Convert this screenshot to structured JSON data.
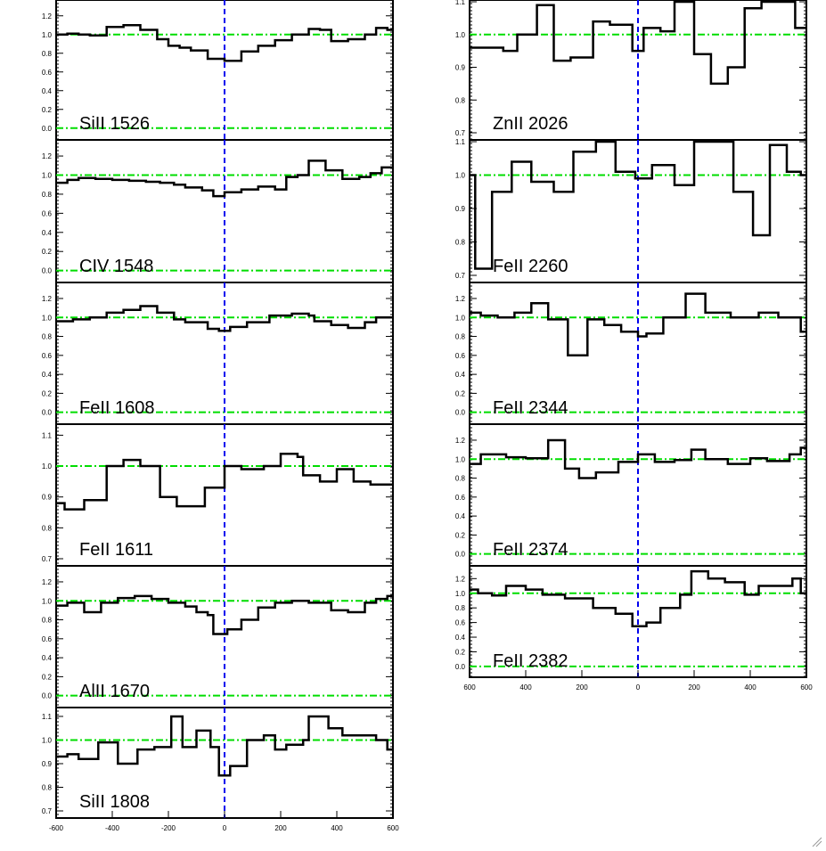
{
  "chart_data": [
    {
      "type": "line",
      "panel_label": "SiII 1526",
      "yticks": [
        "1.2",
        "1.0",
        "0.8",
        "0.6",
        "0.4",
        "0.2",
        "0.0"
      ],
      "ylim": [
        -0.05,
        1.35
      ],
      "xlim": [
        -600,
        600
      ],
      "steps": [
        [
          -600,
          1.0
        ],
        [
          -560,
          1.01
        ],
        [
          -520,
          1.0
        ],
        [
          -480,
          0.99
        ],
        [
          -420,
          1.08
        ],
        [
          -360,
          1.1
        ],
        [
          -300,
          1.05
        ],
        [
          -240,
          0.95
        ],
        [
          -200,
          0.88
        ],
        [
          -160,
          0.86
        ],
        [
          -120,
          0.83
        ],
        [
          -60,
          0.74
        ],
        [
          0,
          0.72
        ],
        [
          60,
          0.82
        ],
        [
          120,
          0.88
        ],
        [
          180,
          0.94
        ],
        [
          240,
          1.0
        ],
        [
          300,
          1.06
        ],
        [
          340,
          1.05
        ],
        [
          380,
          0.93
        ],
        [
          440,
          0.95
        ],
        [
          500,
          1.0
        ],
        [
          540,
          1.07
        ],
        [
          580,
          1.05
        ]
      ]
    },
    {
      "type": "line",
      "panel_label": "CIV 1548",
      "yticks": [
        "1.2",
        "1.0",
        "0.8",
        "0.6",
        "0.4",
        "0.2",
        "0.0"
      ],
      "ylim": [
        -0.05,
        1.35
      ],
      "xlim": [
        -600,
        600
      ],
      "steps": [
        [
          -600,
          0.92
        ],
        [
          -560,
          0.95
        ],
        [
          -520,
          0.97
        ],
        [
          -460,
          0.96
        ],
        [
          -400,
          0.95
        ],
        [
          -340,
          0.94
        ],
        [
          -280,
          0.93
        ],
        [
          -230,
          0.92
        ],
        [
          -180,
          0.9
        ],
        [
          -140,
          0.87
        ],
        [
          -80,
          0.84
        ],
        [
          -40,
          0.78
        ],
        [
          0,
          0.82
        ],
        [
          60,
          0.85
        ],
        [
          120,
          0.88
        ],
        [
          180,
          0.85
        ],
        [
          220,
          0.98
        ],
        [
          260,
          1.0
        ],
        [
          300,
          1.15
        ],
        [
          360,
          1.05
        ],
        [
          420,
          0.96
        ],
        [
          480,
          0.98
        ],
        [
          520,
          1.02
        ],
        [
          560,
          1.08
        ]
      ]
    },
    {
      "type": "line",
      "panel_label": "FeII 1608",
      "yticks": [
        "1.2",
        "1.0",
        "0.8",
        "0.6",
        "0.4",
        "0.2",
        "0.0"
      ],
      "ylim": [
        -0.05,
        1.35
      ],
      "xlim": [
        -600,
        600
      ],
      "steps": [
        [
          -600,
          0.96
        ],
        [
          -540,
          0.98
        ],
        [
          -480,
          1.0
        ],
        [
          -420,
          1.05
        ],
        [
          -360,
          1.08
        ],
        [
          -300,
          1.12
        ],
        [
          -240,
          1.05
        ],
        [
          -180,
          0.98
        ],
        [
          -140,
          0.95
        ],
        [
          -60,
          0.88
        ],
        [
          -20,
          0.86
        ],
        [
          20,
          0.9
        ],
        [
          80,
          0.95
        ],
        [
          160,
          1.02
        ],
        [
          240,
          1.04
        ],
        [
          300,
          1.02
        ],
        [
          320,
          0.96
        ],
        [
          380,
          0.92
        ],
        [
          440,
          0.89
        ],
        [
          500,
          0.95
        ],
        [
          540,
          1.0
        ],
        [
          580,
          1.0
        ]
      ]
    },
    {
      "type": "line",
      "panel_label": "FeII 1611",
      "yticks": [
        "1.1",
        "1.0",
        "0.9",
        "0.8",
        "0.7"
      ],
      "ylim": [
        0.7,
        1.13
      ],
      "xlim": [
        -600,
        600
      ],
      "steps": [
        [
          -600,
          0.88
        ],
        [
          -570,
          0.86
        ],
        [
          -500,
          0.89
        ],
        [
          -420,
          1.0
        ],
        [
          -360,
          1.02
        ],
        [
          -300,
          1.0
        ],
        [
          -230,
          0.9
        ],
        [
          -170,
          0.87
        ],
        [
          -140,
          0.87
        ],
        [
          -70,
          0.93
        ],
        [
          0,
          1.0
        ],
        [
          60,
          0.99
        ],
        [
          140,
          1.0
        ],
        [
          200,
          1.04
        ],
        [
          260,
          1.03
        ],
        [
          280,
          0.97
        ],
        [
          340,
          0.95
        ],
        [
          400,
          0.99
        ],
        [
          460,
          0.95
        ],
        [
          520,
          0.94
        ],
        [
          580,
          0.94
        ]
      ]
    },
    {
      "type": "line",
      "panel_label": "AlII 1670",
      "yticks": [
        "1.2",
        "1.0",
        "0.8",
        "0.6",
        "0.4",
        "0.2",
        "0.0"
      ],
      "ylim": [
        -0.05,
        1.35
      ],
      "xlim": [
        -600,
        600
      ],
      "steps": [
        [
          -600,
          0.95
        ],
        [
          -560,
          0.98
        ],
        [
          -500,
          0.88
        ],
        [
          -440,
          0.98
        ],
        [
          -380,
          1.03
        ],
        [
          -320,
          1.05
        ],
        [
          -260,
          1.02
        ],
        [
          -200,
          0.98
        ],
        [
          -140,
          0.94
        ],
        [
          -100,
          0.88
        ],
        [
          -60,
          0.85
        ],
        [
          -40,
          0.65
        ],
        [
          10,
          0.7
        ],
        [
          60,
          0.8
        ],
        [
          120,
          0.93
        ],
        [
          180,
          0.98
        ],
        [
          240,
          1.0
        ],
        [
          300,
          0.98
        ],
        [
          380,
          0.9
        ],
        [
          440,
          0.88
        ],
        [
          500,
          0.98
        ],
        [
          540,
          1.02
        ],
        [
          580,
          1.05
        ]
      ]
    },
    {
      "type": "line",
      "panel_label": "SiII 1808",
      "yticks": [
        "1.1",
        "1.0",
        "0.9",
        "0.8",
        "0.7"
      ],
      "ylim": [
        0.7,
        1.13
      ],
      "xlim": [
        -600,
        600
      ],
      "steps": [
        [
          -600,
          0.93
        ],
        [
          -560,
          0.94
        ],
        [
          -520,
          0.92
        ],
        [
          -450,
          0.99
        ],
        [
          -380,
          0.9
        ],
        [
          -310,
          0.96
        ],
        [
          -250,
          0.97
        ],
        [
          -190,
          1.1
        ],
        [
          -150,
          0.97
        ],
        [
          -100,
          1.04
        ],
        [
          -50,
          0.97
        ],
        [
          -20,
          0.85
        ],
        [
          20,
          0.89
        ],
        [
          80,
          1.0
        ],
        [
          140,
          1.02
        ],
        [
          180,
          0.96
        ],
        [
          220,
          0.98
        ],
        [
          280,
          1.0
        ],
        [
          300,
          1.1
        ],
        [
          370,
          1.05
        ],
        [
          420,
          1.02
        ],
        [
          480,
          1.02
        ],
        [
          540,
          1.0
        ],
        [
          580,
          0.96
        ]
      ]
    },
    {
      "type": "line",
      "panel_label": "ZnII 2026",
      "yticks": [
        "1.1",
        "1.0",
        "0.9",
        "0.8",
        "0.7"
      ],
      "ylim": [
        0.7,
        1.1
      ],
      "xlim": [
        -600,
        600
      ],
      "steps": [
        [
          -600,
          0.96
        ],
        [
          -560,
          0.96
        ],
        [
          -480,
          0.95
        ],
        [
          -430,
          1.0
        ],
        [
          -360,
          1.09
        ],
        [
          -300,
          0.92
        ],
        [
          -240,
          0.93
        ],
        [
          -160,
          1.04
        ],
        [
          -100,
          1.03
        ],
        [
          -20,
          0.95
        ],
        [
          20,
          1.02
        ],
        [
          80,
          1.01
        ],
        [
          130,
          1.1
        ],
        [
          200,
          0.94
        ],
        [
          260,
          0.85
        ],
        [
          320,
          0.9
        ],
        [
          380,
          1.08
        ],
        [
          440,
          1.1
        ],
        [
          500,
          1.1
        ],
        [
          560,
          1.02
        ]
      ]
    },
    {
      "type": "line",
      "panel_label": "FeII 2260",
      "yticks": [
        "1.1",
        "1.0",
        "0.9",
        "0.8",
        "0.7"
      ],
      "ylim": [
        0.7,
        1.1
      ],
      "xlim": [
        -600,
        600
      ],
      "steps": [
        [
          -600,
          1.0
        ],
        [
          -580,
          0.72
        ],
        [
          -520,
          0.95
        ],
        [
          -450,
          1.04
        ],
        [
          -380,
          0.98
        ],
        [
          -300,
          0.95
        ],
        [
          -230,
          1.07
        ],
        [
          -150,
          1.1
        ],
        [
          -80,
          1.01
        ],
        [
          -10,
          0.99
        ],
        [
          50,
          1.03
        ],
        [
          130,
          0.97
        ],
        [
          200,
          1.1
        ],
        [
          260,
          1.1
        ],
        [
          340,
          0.95
        ],
        [
          410,
          0.82
        ],
        [
          470,
          1.09
        ],
        [
          530,
          1.01
        ],
        [
          580,
          1.0
        ]
      ]
    },
    {
      "type": "line",
      "panel_label": "FeII 2344",
      "yticks": [
        "1.2",
        "1.0",
        "0.8",
        "0.6",
        "0.4",
        "0.2",
        "0.0"
      ],
      "ylim": [
        -0.05,
        1.35
      ],
      "xlim": [
        -600,
        600
      ],
      "steps": [
        [
          -600,
          1.05
        ],
        [
          -560,
          1.02
        ],
        [
          -500,
          1.0
        ],
        [
          -440,
          1.05
        ],
        [
          -380,
          1.15
        ],
        [
          -320,
          0.98
        ],
        [
          -250,
          0.6
        ],
        [
          -180,
          0.98
        ],
        [
          -120,
          0.92
        ],
        [
          -60,
          0.85
        ],
        [
          0,
          0.8
        ],
        [
          30,
          0.83
        ],
        [
          90,
          1.0
        ],
        [
          170,
          1.25
        ],
        [
          240,
          1.05
        ],
        [
          330,
          1.0
        ],
        [
          430,
          1.05
        ],
        [
          500,
          1.0
        ],
        [
          560,
          1.0
        ],
        [
          580,
          0.85
        ]
      ]
    },
    {
      "type": "line",
      "panel_label": "FeII 2374",
      "yticks": [
        "1.2",
        "1.0",
        "0.8",
        "0.6",
        "0.4",
        "0.2",
        "0.0"
      ],
      "ylim": [
        -0.05,
        1.35
      ],
      "xlim": [
        -600,
        600
      ],
      "steps": [
        [
          -600,
          0.95
        ],
        [
          -560,
          1.05
        ],
        [
          -470,
          1.02
        ],
        [
          -400,
          1.01
        ],
        [
          -320,
          1.2
        ],
        [
          -260,
          0.9
        ],
        [
          -210,
          0.8
        ],
        [
          -150,
          0.86
        ],
        [
          -70,
          0.97
        ],
        [
          0,
          1.05
        ],
        [
          60,
          0.97
        ],
        [
          130,
          0.99
        ],
        [
          190,
          1.1
        ],
        [
          240,
          1.0
        ],
        [
          320,
          0.95
        ],
        [
          400,
          1.01
        ],
        [
          460,
          0.98
        ],
        [
          540,
          1.05
        ],
        [
          580,
          1.12
        ]
      ]
    },
    {
      "type": "line",
      "panel_label": "FeII 2382",
      "yticks": [
        "1.2",
        "1.0",
        "0.8",
        "0.6",
        "0.4",
        "0.2",
        "0.0"
      ],
      "ylim": [
        -0.05,
        1.35
      ],
      "xlim": [
        -600,
        600
      ],
      "steps": [
        [
          -600,
          1.05
        ],
        [
          -570,
          1.0
        ],
        [
          -520,
          0.97
        ],
        [
          -470,
          1.1
        ],
        [
          -400,
          1.05
        ],
        [
          -340,
          0.98
        ],
        [
          -260,
          0.93
        ],
        [
          -160,
          0.8
        ],
        [
          -80,
          0.72
        ],
        [
          -20,
          0.55
        ],
        [
          30,
          0.6
        ],
        [
          80,
          0.8
        ],
        [
          150,
          0.98
        ],
        [
          190,
          1.3
        ],
        [
          250,
          1.2
        ],
        [
          310,
          1.15
        ],
        [
          380,
          0.98
        ],
        [
          430,
          1.1
        ],
        [
          500,
          1.1
        ],
        [
          550,
          1.2
        ],
        [
          580,
          1.0
        ]
      ]
    }
  ],
  "x_axis": {
    "ticks": [
      "-600",
      "-400",
      "-200",
      "0",
      "200",
      "400",
      "600"
    ]
  },
  "colors": {
    "reference_line": "#00dd00",
    "zero_velocity_line": "#0000ee",
    "spectrum": "#000000"
  }
}
